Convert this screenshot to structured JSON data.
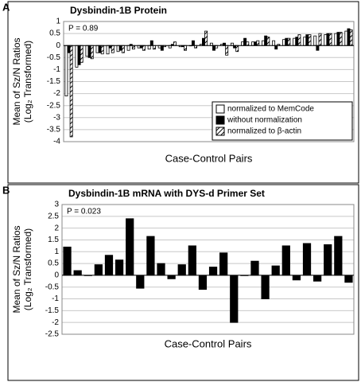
{
  "chart_data": [
    {
      "type": "bar",
      "panel_label": "A",
      "title": "Dysbindin-1B Protein",
      "annotation": "P = 0.89",
      "xlabel": "Case-Control Pairs",
      "ylabel": [
        "Mean of Sz/N Ratios",
        "(Log₂ Transformed)"
      ],
      "categories": [
        null,
        null,
        null,
        null,
        null,
        null,
        null,
        null,
        null,
        null,
        null,
        null,
        null,
        null,
        null,
        null,
        null,
        null,
        null,
        null,
        null,
        null,
        null,
        null,
        null,
        null,
        null,
        null
      ],
      "series": [
        {
          "name": "normalized to MemCode",
          "color": "#ffffff",
          "values": [
            -2.1,
            -0.9,
            -0.45,
            -0.3,
            -0.35,
            -0.25,
            -0.2,
            -0.1,
            -0.15,
            -0.1,
            -0.1,
            -0.05,
            0.0,
            0.05,
            0.1,
            0.05,
            0.1,
            0.15,
            0.15,
            0.2,
            0.2,
            0.25,
            0.3,
            0.35,
            0.4,
            0.45,
            0.5,
            0.6
          ]
        },
        {
          "name": "without normalization",
          "color": "#000000",
          "values": [
            -0.3,
            -0.8,
            -0.5,
            -0.3,
            -0.1,
            -0.2,
            0.05,
            -0.1,
            0.2,
            -0.2,
            0.05,
            -0.05,
            0.2,
            0.3,
            -0.2,
            0.1,
            -0.1,
            0.3,
            0.15,
            0.4,
            -0.15,
            0.3,
            0.35,
            0.45,
            -0.2,
            0.5,
            0.55,
            0.7
          ]
        },
        {
          "name": "normalized to β-actin",
          "color": "#ffffff",
          "hatch": true,
          "values": [
            -3.8,
            -0.7,
            -0.55,
            -0.35,
            -0.3,
            -0.3,
            -0.15,
            -0.2,
            -0.15,
            -0.05,
            0.15,
            -0.2,
            -0.1,
            0.6,
            -0.1,
            -0.4,
            -0.25,
            0.15,
            0.2,
            0.35,
            0.05,
            0.3,
            0.45,
            0.45,
            0.5,
            0.5,
            0.55,
            0.65
          ]
        }
      ],
      "ylim": [
        -4,
        1
      ],
      "yticks": [
        -4,
        -3.5,
        -3,
        -2.5,
        -2,
        -1.5,
        -1,
        -0.5,
        0,
        0.5,
        1
      ],
      "grid": true,
      "legend": "lower right"
    },
    {
      "type": "bar",
      "panel_label": "B",
      "title": "Dysbindin-1B mRNA with DYS-d Primer Set",
      "annotation": "P = 0.023",
      "xlabel": "Case-Control Pairs",
      "ylabel": [
        "Mean of Sz/N Ratios",
        "(Log₂ Transformed)"
      ],
      "categories": [
        null,
        null,
        null,
        null,
        null,
        null,
        null,
        null,
        null,
        null,
        null,
        null,
        null,
        null,
        null,
        null,
        null,
        null,
        null,
        null,
        null,
        null,
        null,
        null,
        null,
        null,
        null,
        null
      ],
      "values": [
        1.2,
        0.2,
        0.0,
        0.45,
        0.85,
        0.65,
        2.4,
        -0.55,
        1.65,
        0.5,
        -0.15,
        0.45,
        1.25,
        -0.6,
        0.35,
        0.95,
        -2.0,
        0.0,
        0.6,
        -1.0,
        0.4,
        1.25,
        -0.2,
        1.35,
        -0.25,
        1.3,
        1.65,
        -0.3
      ],
      "color": "#000000",
      "ylim": [
        -2.5,
        3
      ],
      "yticks": [
        -2.5,
        -2,
        -1.5,
        -1,
        -0.5,
        0,
        0.5,
        1,
        1.5,
        2,
        2.5,
        3
      ],
      "grid": true
    }
  ]
}
